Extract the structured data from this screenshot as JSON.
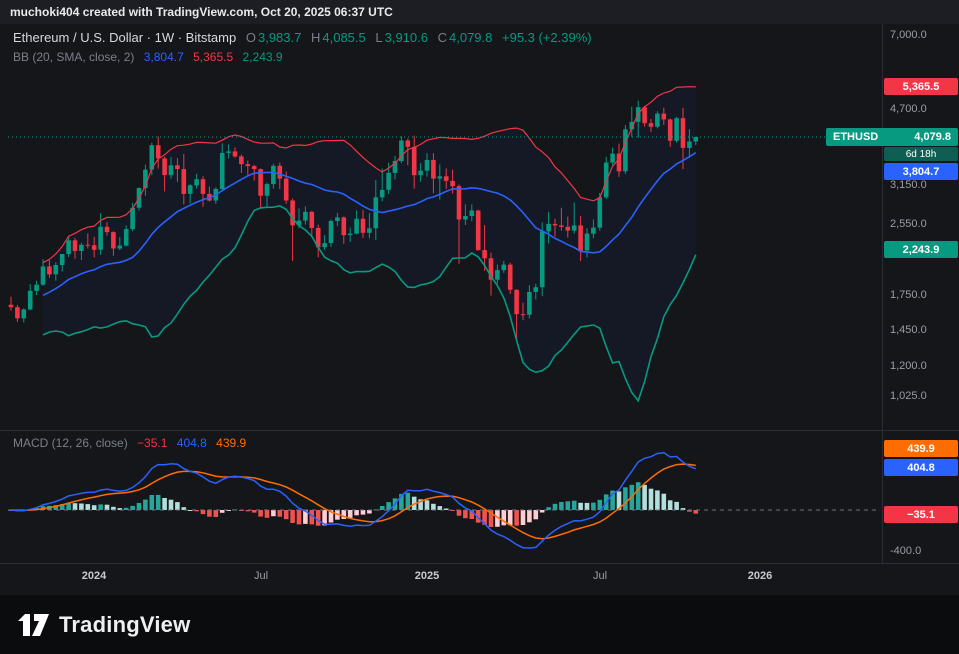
{
  "header": {
    "attribution": "muchoki404 created with TradingView.com, Oct 20, 2025 06:37 UTC"
  },
  "symbol_info": {
    "line": "Ethereum / U.S. Dollar · 1W · Bitstamp",
    "o_label": "O",
    "o": "3,983.7",
    "h_label": "H",
    "h": "4,085.5",
    "l_label": "L",
    "l": "3,910.6",
    "c_label": "C",
    "c": "4,079.8",
    "change": "+95.3 (+2.39%)"
  },
  "indicators": {
    "bb": {
      "label": "BB (20, SMA, close, 2)",
      "basis": "3,804.7",
      "upper": "5,365.5",
      "lower": "2,243.9"
    },
    "macd": {
      "label": "MACD (12, 26, close)",
      "histogram": "−35.1",
      "macd": "404.8",
      "signal": "439.9"
    }
  },
  "price_scale": {
    "ticks": [
      {
        "text": "7,000.0",
        "value": 7000
      },
      {
        "text": "4,700.0",
        "value": 4700
      },
      {
        "text": "3,150.0",
        "value": 3150
      },
      {
        "text": "2,550.0",
        "value": 2550
      },
      {
        "text": "1,750.0",
        "value": 1750
      },
      {
        "text": "1,450.0",
        "value": 1450
      },
      {
        "text": "1,200.0",
        "value": 1200
      },
      {
        "text": "1,025.0",
        "value": 1025
      }
    ],
    "badges": {
      "upper": "5,365.5",
      "symbol": "ETHUSD",
      "price": "4,079.8",
      "countdown": "6d 18h",
      "basis": "3,804.7",
      "lower": "2,243.9"
    }
  },
  "macd_scale": {
    "ticks": [
      {
        "text": "-400.0",
        "value": -400
      }
    ],
    "badges": {
      "signal": "439.9",
      "macd": "404.8",
      "histogram": "−35.1"
    }
  },
  "time_axis": {
    "labels": [
      {
        "text": "2024",
        "index": 13,
        "type": "year"
      },
      {
        "text": "Jul",
        "index": 39,
        "type": "month"
      },
      {
        "text": "2025",
        "index": 65,
        "type": "year"
      },
      {
        "text": "Jul",
        "index": 92,
        "type": "month"
      },
      {
        "text": "2026",
        "index": 117,
        "type": "year"
      }
    ]
  },
  "footer": {
    "brand": "TradingView"
  },
  "chart_data": {
    "type": "candlestick",
    "symbol": "ETHUSD",
    "exchange": "Bitstamp",
    "interval": "1W",
    "scale": "log",
    "last_price": 4079.8,
    "price_axis_ticks": [
      7000,
      4700,
      3150,
      2550,
      1750,
      1450,
      1200,
      1025
    ],
    "macd_axis_ticks": [
      -400
    ],
    "overlays": {
      "bb": {
        "params": [
          20,
          "SMA",
          "close",
          2
        ],
        "last": {
          "basis": 3804.7,
          "upper": 5365.5,
          "lower": 2243.9
        }
      }
    },
    "lower": {
      "macd": {
        "params": [
          12,
          26,
          "close"
        ],
        "last": {
          "macd": 404.8,
          "signal": 439.9,
          "histogram": -35.1
        }
      }
    },
    "colors": {
      "up": "#089981",
      "down": "#f23645",
      "bb_basis": "#2962ff",
      "bb_upper": "#f23645",
      "bb_lower": "#089981",
      "bb_fill": "rgba(41,98,255,0.05)",
      "macd_line": "#2962ff",
      "signal_line": "#ff6d00",
      "hist_grow_above": "#26a69a",
      "hist_fall_above": "#b2dfdb",
      "hist_grow_below": "#ffcdd2",
      "hist_fall_below": "#ef5350",
      "price_line": "#089981",
      "zero_line": "#6f727c"
    },
    "candles": {
      "start": "2023-10-02",
      "step_days": 7,
      "open": [
        1672,
        1650,
        1555,
        1630,
        1800,
        1860,
        2050,
        1965,
        2065,
        2190,
        2355,
        2225,
        2300,
        2295,
        2240,
        2530,
        2460,
        2255,
        2290,
        2500,
        2800,
        3110,
        3430,
        3905,
        3640,
        3330,
        3510,
        3440,
        3015,
        3155,
        3260,
        3015,
        2910,
        3095,
        3750,
        3780,
        3680,
        3530,
        3495,
        3440,
        2985,
        3175,
        3500,
        3270,
        2910,
        2550,
        2615,
        2740,
        2515,
        2270,
        2320,
        2610,
        2660,
        2420,
        2440,
        2640,
        2450,
        2510,
        2960,
        3080,
        3370,
        3590,
        4005,
        3870,
        3330,
        3410,
        3610,
        3270,
        3310,
        3230,
        3140,
        2630,
        2680,
        2760,
        2235,
        2140,
        1910,
        2010,
        2070,
        1810,
        1590,
        1585,
        1790,
        1835,
        2470,
        2570,
        2550,
        2530,
        2480,
        2550,
        2230,
        2440,
        2520,
        2960,
        3560,
        3735,
        3400,
        4250,
        4420,
        4780,
        4390,
        4310,
        4620,
        4480,
        4000,
        4510,
        3850,
        3983.7
      ],
      "high": [
        1745,
        1670,
        1640,
        1865,
        1900,
        2130,
        2120,
        2095,
        2190,
        2405,
        2385,
        2325,
        2445,
        2400,
        2720,
        2590,
        2470,
        2395,
        2550,
        2875,
        3120,
        3525,
        3955,
        4093,
        3675,
        3665,
        3645,
        3730,
        3175,
        3355,
        3310,
        3135,
        3120,
        3945,
        3925,
        3860,
        3720,
        3600,
        3520,
        3450,
        3200,
        3540,
        3560,
        3395,
        2940,
        2790,
        2820,
        2755,
        2560,
        2420,
        2630,
        2725,
        2675,
        2520,
        2760,
        2770,
        2720,
        3245,
        3450,
        3560,
        3690,
        4095,
        4045,
        4110,
        3550,
        3745,
        3745,
        3525,
        3450,
        3430,
        3170,
        2850,
        2850,
        2770,
        2555,
        2205,
        2070,
        2110,
        2090,
        1815,
        1690,
        1855,
        1870,
        2590,
        2740,
        2640,
        2800,
        2670,
        2880,
        2680,
        2510,
        2630,
        3030,
        3675,
        3855,
        3940,
        4350,
        4790,
        4955,
        4805,
        4490,
        4680,
        4765,
        4500,
        4540,
        4765,
        4255,
        4085.5
      ],
      "low": [
        1620,
        1525,
        1520,
        1622,
        1760,
        1850,
        1930,
        1900,
        1995,
        2155,
        2135,
        2120,
        2255,
        2150,
        2180,
        2415,
        2170,
        2235,
        2280,
        2470,
        2760,
        2985,
        3330,
        3450,
        3055,
        3265,
        3215,
        2850,
        2865,
        3100,
        2815,
        2895,
        2860,
        3050,
        3640,
        3655,
        3370,
        3335,
        3235,
        2810,
        2820,
        3100,
        3090,
        2860,
        2110,
        2510,
        2560,
        2400,
        2150,
        2235,
        2275,
        2540,
        2310,
        2335,
        2430,
        2385,
        2380,
        2360,
        2900,
        3015,
        3255,
        3550,
        3510,
        3100,
        3215,
        3305,
        3025,
        2925,
        3095,
        3020,
        2080,
        2555,
        2605,
        2230,
        2000,
        1755,
        1870,
        1980,
        1770,
        1385,
        1540,
        1555,
        1720,
        1750,
        2315,
        2400,
        2480,
        2390,
        2440,
        2111,
        2150,
        2380,
        2480,
        2935,
        3510,
        3300,
        3355,
        4080,
        4065,
        4310,
        4190,
        4270,
        4350,
        3870,
        3965,
        3440,
        3650,
        3910.6
      ],
      "close": [
        1650,
        1555,
        1630,
        1800,
        1860,
        2050,
        1965,
        2065,
        2190,
        2355,
        2225,
        2300,
        2295,
        2240,
        2530,
        2460,
        2255,
        2290,
        2500,
        2800,
        3110,
        3430,
        3905,
        3640,
        3330,
        3510,
        3440,
        3015,
        3155,
        3260,
        3015,
        2910,
        3095,
        3750,
        3780,
        3680,
        3530,
        3495,
        3440,
        2985,
        3175,
        3500,
        3270,
        2910,
        2550,
        2615,
        2740,
        2515,
        2270,
        2320,
        2610,
        2660,
        2420,
        2440,
        2640,
        2450,
        2510,
        2960,
        3080,
        3370,
        3590,
        4005,
        3870,
        3330,
        3410,
        3610,
        3270,
        3310,
        3230,
        3140,
        2630,
        2680,
        2760,
        2235,
        2140,
        1910,
        2010,
        2070,
        1810,
        1590,
        1585,
        1790,
        1835,
        2470,
        2570,
        2550,
        2530,
        2480,
        2550,
        2230,
        2440,
        2520,
        2960,
        3560,
        3735,
        3400,
        4250,
        4420,
        4780,
        4390,
        4310,
        4620,
        4480,
        4000,
        4510,
        3850,
        3984,
        4079.8
      ]
    }
  }
}
